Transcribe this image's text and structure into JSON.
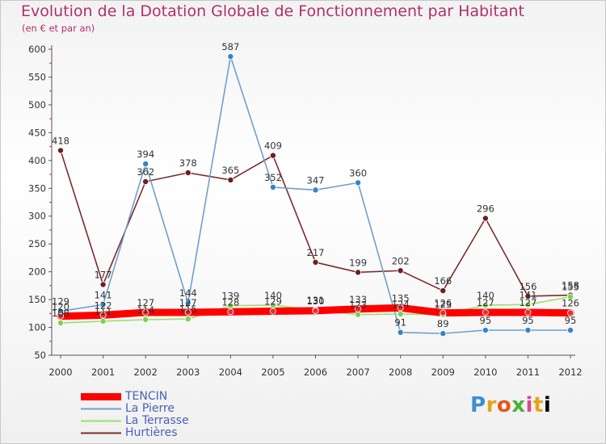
{
  "chart_data": {
    "type": "line",
    "title": "Evolution de la Dotation Globale de Fonctionnement par Habitant",
    "subtitle": "(en € et par an)",
    "xlabel": "",
    "ylabel": "",
    "ylim": [
      50,
      600
    ],
    "yticks": [
      50,
      100,
      150,
      200,
      250,
      300,
      350,
      400,
      450,
      500,
      550,
      600
    ],
    "grid": false,
    "x": [
      2000,
      2001,
      2002,
      2003,
      2004,
      2005,
      2006,
      2007,
      2008,
      2009,
      2010,
      2011,
      2012
    ],
    "series": [
      {
        "name": "TENCIN",
        "color": "#ff0000",
        "marker_color": "#e03030",
        "values": [
          120,
          122,
          127,
          127,
          128,
          129,
          130,
          133,
          135,
          126,
          127,
          127,
          126
        ]
      },
      {
        "name": "La Pierre",
        "color": "#6f9fcf",
        "marker_color": "#2f86c8",
        "values": [
          129,
          141,
          394,
          144,
          587,
          352,
          347,
          360,
          91,
          89,
          95,
          95,
          95
        ]
      },
      {
        "name": "La Terrasse",
        "color": "#9ede6e",
        "marker_color": "#7bd34a",
        "values": [
          108,
          111,
          114,
          115,
          139,
          140,
          131,
          123,
          124,
          123,
          140,
          141,
          155
        ]
      },
      {
        "name": "Hurtières",
        "color": "#7a2d2d",
        "marker_color": "#6e1f1f",
        "values": [
          418,
          177,
          362,
          378,
          365,
          409,
          217,
          199,
          202,
          166,
          296,
          156,
          158
        ]
      }
    ]
  },
  "logo": {
    "parts": [
      "P",
      "r",
      "o",
      "x",
      "i",
      "t",
      "i"
    ],
    "text": "Proxiti"
  }
}
